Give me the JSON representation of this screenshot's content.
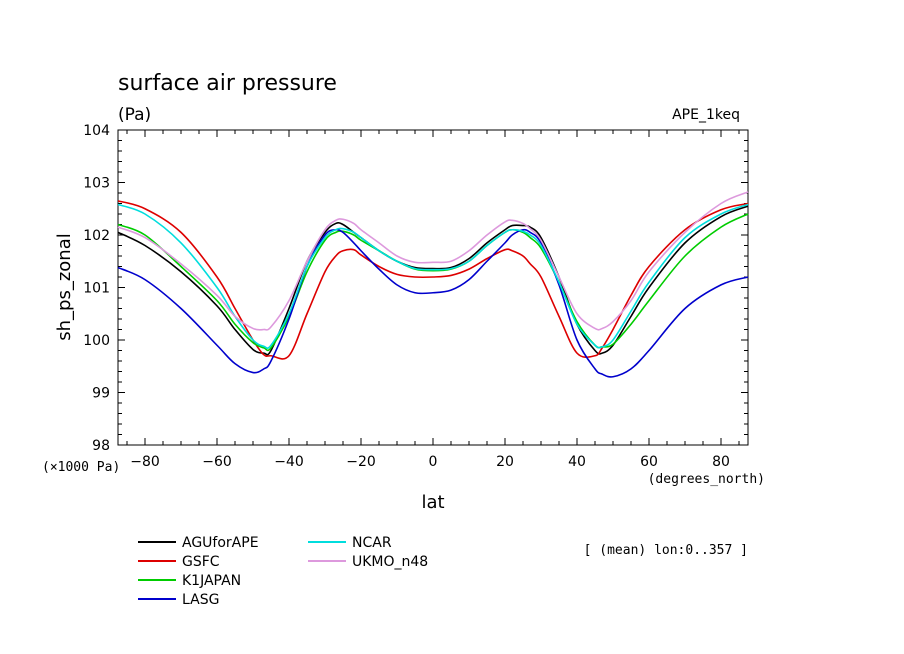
{
  "chart_data": {
    "type": "line",
    "title": "surface air pressure",
    "units": "(Pa)",
    "experiment": "APE_1keq",
    "ylabel": "sh_ps_zonal",
    "xlabel": "lat",
    "y_scale_note": "(×1000 Pa)",
    "x_units": "(degrees_north)",
    "mean_note": "[ (mean) lon:0..357 ]",
    "xlim": [
      -87.5,
      87.5
    ],
    "ylim": [
      98,
      104
    ],
    "xticks": [
      -80,
      -60,
      -40,
      -20,
      0,
      20,
      40,
      60,
      80
    ],
    "yticks": [
      98,
      99,
      100,
      101,
      102,
      103,
      104
    ],
    "x": [
      -87.5,
      -80,
      -70,
      -60,
      -55,
      -50,
      -47,
      -45,
      -40,
      -35,
      -30,
      -27,
      -25,
      -22,
      -20,
      -15,
      -10,
      -5,
      0,
      5,
      10,
      15,
      20,
      22,
      25,
      27,
      30,
      35,
      40,
      45,
      47,
      50,
      55,
      60,
      70,
      80,
      87.5
    ],
    "series": [
      {
        "name": "AGUforAPE",
        "color": "#000000",
        "values": [
          102.05,
          101.8,
          101.3,
          100.65,
          100.2,
          99.82,
          99.75,
          99.8,
          100.6,
          101.5,
          102.05,
          102.22,
          102.2,
          102.05,
          101.95,
          101.7,
          101.5,
          101.38,
          101.36,
          101.38,
          101.55,
          101.85,
          102.1,
          102.18,
          102.18,
          102.15,
          101.95,
          101.2,
          100.3,
          99.8,
          99.75,
          99.9,
          100.45,
          101.0,
          101.85,
          102.35,
          102.55
        ]
      },
      {
        "name": "GSFC",
        "color": "#dd0000",
        "values": [
          102.65,
          102.5,
          102.05,
          101.2,
          100.6,
          100.0,
          99.72,
          99.7,
          99.7,
          100.5,
          101.3,
          101.6,
          101.7,
          101.72,
          101.62,
          101.4,
          101.25,
          101.2,
          101.2,
          101.23,
          101.35,
          101.55,
          101.72,
          101.7,
          101.6,
          101.45,
          101.2,
          100.45,
          99.75,
          99.7,
          99.85,
          100.2,
          100.85,
          101.4,
          102.1,
          102.48,
          102.6
        ]
      },
      {
        "name": "K1JAPAN",
        "color": "#00cc00",
        "values": [
          102.2,
          102.0,
          101.4,
          100.75,
          100.3,
          99.95,
          99.85,
          99.85,
          100.45,
          101.3,
          101.9,
          102.05,
          102.07,
          102.0,
          101.9,
          101.7,
          101.5,
          101.35,
          101.32,
          101.35,
          101.5,
          101.8,
          102.05,
          102.1,
          102.05,
          101.95,
          101.75,
          101.1,
          100.35,
          99.9,
          99.87,
          99.92,
          100.3,
          100.75,
          101.6,
          102.15,
          102.4
        ]
      },
      {
        "name": "LASG",
        "color": "#0000cc",
        "values": [
          101.38,
          101.15,
          100.6,
          99.9,
          99.55,
          99.38,
          99.45,
          99.6,
          100.4,
          101.4,
          102.0,
          102.1,
          102.05,
          101.85,
          101.7,
          101.35,
          101.05,
          100.9,
          100.9,
          100.95,
          101.15,
          101.5,
          101.85,
          102.0,
          102.1,
          102.05,
          101.85,
          101.05,
          100.0,
          99.45,
          99.35,
          99.3,
          99.45,
          99.8,
          100.6,
          101.05,
          101.2
        ]
      },
      {
        "name": "NCAR",
        "color": "#00dddd",
        "values": [
          102.58,
          102.4,
          101.85,
          101.0,
          100.45,
          100.0,
          99.88,
          99.9,
          100.5,
          101.4,
          101.95,
          102.1,
          102.12,
          102.05,
          101.95,
          101.7,
          101.5,
          101.36,
          101.34,
          101.36,
          101.5,
          101.8,
          102.05,
          102.1,
          102.07,
          102.0,
          101.8,
          101.1,
          100.3,
          99.9,
          99.87,
          100.0,
          100.55,
          101.1,
          101.95,
          102.4,
          102.58
        ]
      },
      {
        "name": "UKMO_n48",
        "color": "#dd99dd",
        "values": [
          102.15,
          101.95,
          101.45,
          100.85,
          100.45,
          100.22,
          100.2,
          100.25,
          100.75,
          101.5,
          102.1,
          102.28,
          102.3,
          102.22,
          102.1,
          101.85,
          101.6,
          101.48,
          101.48,
          101.5,
          101.7,
          102.0,
          102.25,
          102.28,
          102.22,
          102.12,
          101.9,
          101.2,
          100.5,
          100.22,
          100.22,
          100.35,
          100.75,
          101.3,
          102.05,
          102.6,
          102.82
        ]
      }
    ],
    "legend_position": "bottom"
  }
}
